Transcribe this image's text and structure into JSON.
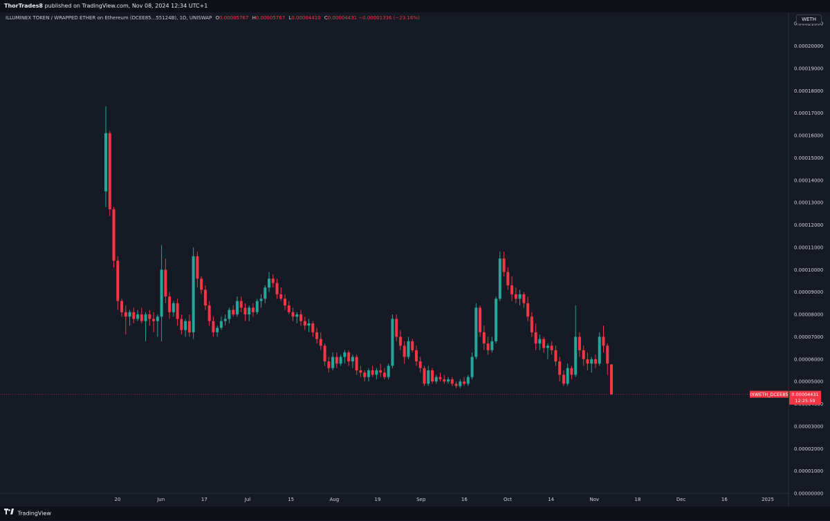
{
  "publish": {
    "author": "ThorTrades8",
    "text": "published on TradingView.com, Nov 08, 2024 12:34 UTC+1"
  },
  "legend": {
    "symbol": "ILLUMINEX TOKEN / WRAPPED ETHER on Ethereum (DCEE85...55124B), 1D, UNISWAP",
    "o_label": "O",
    "o_value": "0.00005767",
    "h_label": "H",
    "h_value": "0.00005767",
    "l_label": "L",
    "l_value": "0.00004410",
    "c_label": "C",
    "c_value": "0.00004431",
    "change": "−0.00001336 (−23.16%)"
  },
  "currency": "WETH",
  "price_label": {
    "ticker": "IXWETH_DCEE85",
    "price": "0.00004431",
    "countdown": "12:25:59"
  },
  "footer": {
    "brand": "TradingView"
  },
  "colors": {
    "up": "#26a69a",
    "down": "#f23645",
    "background": "#161a25",
    "axis_text": "#d1d4dc"
  },
  "chart_data": {
    "type": "candlestick",
    "ylim": [
      0,
      0.000215
    ],
    "ytick_labels": [
      "0.00021000",
      "0.00020000",
      "0.00019000",
      "0.00018000",
      "0.00017000",
      "0.00016000",
      "0.00015000",
      "0.00014000",
      "0.00013000",
      "0.00012000",
      "0.00011000",
      "0.00010000",
      "0.00009000",
      "0.00008000",
      "0.00007000",
      "0.00006000",
      "0.00005000",
      "0.00004000",
      "0.00003000",
      "0.00002000",
      "0.00001000",
      "0.00000000"
    ],
    "xtick_labels": [
      "20",
      "Jun",
      "17",
      "Jul",
      "15",
      "Aug",
      "19",
      "Sep",
      "16",
      "Oct",
      "14",
      "Nov",
      "18",
      "Dec",
      "16",
      "2025"
    ],
    "last_price": 4.431e-05,
    "candles": [
      {
        "o": 0.000135,
        "h": 0.000173,
        "l": 0.000128,
        "c": 0.000161
      },
      {
        "o": 0.000161,
        "h": 0.000162,
        "l": 0.000124,
        "c": 0.000127
      },
      {
        "o": 0.000127,
        "h": 0.000128,
        "l": 0.000101,
        "c": 0.000104
      },
      {
        "o": 0.000104,
        "h": 0.000106,
        "l": 8.2e-05,
        "c": 8.6e-05
      },
      {
        "o": 8.6e-05,
        "h": 8.7e-05,
        "l": 7.9e-05,
        "c": 8.1e-05
      },
      {
        "o": 8.1e-05,
        "h": 8.4e-05,
        "l": 7.1e-05,
        "c": 7.9e-05
      },
      {
        "o": 7.9e-05,
        "h": 8.2e-05,
        "l": 7.5e-05,
        "c": 8.1e-05
      },
      {
        "o": 8.1e-05,
        "h": 8.3e-05,
        "l": 7.6e-05,
        "c": 7.8e-05
      },
      {
        "o": 7.8e-05,
        "h": 8.2e-05,
        "l": 7.7e-05,
        "c": 8e-05
      },
      {
        "o": 8e-05,
        "h": 8.3e-05,
        "l": 7.6e-05,
        "c": 7.7e-05
      },
      {
        "o": 7.7e-05,
        "h": 8.1e-05,
        "l": 6.8e-05,
        "c": 8e-05
      },
      {
        "o": 8e-05,
        "h": 8.2e-05,
        "l": 7.5e-05,
        "c": 7.8e-05
      },
      {
        "o": 7.8e-05,
        "h": 8.1e-05,
        "l": 7.2e-05,
        "c": 7.7e-05
      },
      {
        "o": 7.7e-05,
        "h": 8e-05,
        "l": 7e-05,
        "c": 7.9e-05
      },
      {
        "o": 7.9e-05,
        "h": 0.000111,
        "l": 6.8e-05,
        "c": 0.0001
      },
      {
        "o": 0.0001,
        "h": 0.000105,
        "l": 8.5e-05,
        "c": 8.8e-05
      },
      {
        "o": 8.8e-05,
        "h": 9e-05,
        "l": 7.8e-05,
        "c": 8.1e-05
      },
      {
        "o": 8.1e-05,
        "h": 8.6e-05,
        "l": 7.9e-05,
        "c": 8.5e-05
      },
      {
        "o": 8.5e-05,
        "h": 8.7e-05,
        "l": 7.5e-05,
        "c": 7.8e-05
      },
      {
        "o": 7.8e-05,
        "h": 8e-05,
        "l": 7.1e-05,
        "c": 7.3e-05
      },
      {
        "o": 7.3e-05,
        "h": 7.8e-05,
        "l": 7e-05,
        "c": 7.7e-05
      },
      {
        "o": 7.7e-05,
        "h": 8e-05,
        "l": 7e-05,
        "c": 7.2e-05
      },
      {
        "o": 7.2e-05,
        "h": 0.00011,
        "l": 6.9e-05,
        "c": 0.000106
      },
      {
        "o": 0.000106,
        "h": 0.000108,
        "l": 9.2e-05,
        "c": 9.6e-05
      },
      {
        "o": 9.6e-05,
        "h": 9.7e-05,
        "l": 8.9e-05,
        "c": 9.1e-05
      },
      {
        "o": 9.1e-05,
        "h": 9.3e-05,
        "l": 8.2e-05,
        "c": 8.4e-05
      },
      {
        "o": 8.4e-05,
        "h": 8.6e-05,
        "l": 7.5e-05,
        "c": 7.7e-05
      },
      {
        "o": 7.7e-05,
        "h": 7.9e-05,
        "l": 7e-05,
        "c": 7.2e-05
      },
      {
        "o": 7.2e-05,
        "h": 7.5e-05,
        "l": 7e-05,
        "c": 7.4e-05
      },
      {
        "o": 7.4e-05,
        "h": 7.9e-05,
        "l": 7.3e-05,
        "c": 7.7e-05
      },
      {
        "o": 7.7e-05,
        "h": 8e-05,
        "l": 7.5e-05,
        "c": 7.8e-05
      },
      {
        "o": 7.8e-05,
        "h": 8.3e-05,
        "l": 7.6e-05,
        "c": 8.2e-05
      },
      {
        "o": 8.2e-05,
        "h": 8.4e-05,
        "l": 7.9e-05,
        "c": 8e-05
      },
      {
        "o": 8e-05,
        "h": 8.8e-05,
        "l": 7.9e-05,
        "c": 8.6e-05
      },
      {
        "o": 8.6e-05,
        "h": 8.8e-05,
        "l": 8.1e-05,
        "c": 8.3e-05
      },
      {
        "o": 8.3e-05,
        "h": 8.5e-05,
        "l": 7.7e-05,
        "c": 8e-05
      },
      {
        "o": 8e-05,
        "h": 8.4e-05,
        "l": 7.7e-05,
        "c": 8.3e-05
      },
      {
        "o": 8.3e-05,
        "h": 8.5e-05,
        "l": 7.9e-05,
        "c": 8.1e-05
      },
      {
        "o": 8.1e-05,
        "h": 8.7e-05,
        "l": 8e-05,
        "c": 8.6e-05
      },
      {
        "o": 8.6e-05,
        "h": 8.9e-05,
        "l": 8.3e-05,
        "c": 8.7e-05
      },
      {
        "o": 8.7e-05,
        "h": 9.3e-05,
        "l": 8.5e-05,
        "c": 9.2e-05
      },
      {
        "o": 9.2e-05,
        "h": 9.9e-05,
        "l": 9e-05,
        "c": 9.6e-05
      },
      {
        "o": 9.6e-05,
        "h": 9.8e-05,
        "l": 9.2e-05,
        "c": 9.4e-05
      },
      {
        "o": 9.4e-05,
        "h": 9.6e-05,
        "l": 8.7e-05,
        "c": 8.9e-05
      },
      {
        "o": 8.9e-05,
        "h": 9.2e-05,
        "l": 8.6e-05,
        "c": 8.7e-05
      },
      {
        "o": 8.7e-05,
        "h": 8.9e-05,
        "l": 8.2e-05,
        "c": 8.4e-05
      },
      {
        "o": 8.4e-05,
        "h": 8.6e-05,
        "l": 8e-05,
        "c": 8.1e-05
      },
      {
        "o": 8.1e-05,
        "h": 8.3e-05,
        "l": 7.7e-05,
        "c": 7.9e-05
      },
      {
        "o": 7.9e-05,
        "h": 8.1e-05,
        "l": 7.6e-05,
        "c": 8e-05
      },
      {
        "o": 8e-05,
        "h": 8.2e-05,
        "l": 7.5e-05,
        "c": 7.7e-05
      },
      {
        "o": 7.7e-05,
        "h": 7.9e-05,
        "l": 7.3e-05,
        "c": 7.5e-05
      },
      {
        "o": 7.5e-05,
        "h": 7.8e-05,
        "l": 7.2e-05,
        "c": 7.6e-05
      },
      {
        "o": 7.6e-05,
        "h": 7.7e-05,
        "l": 7e-05,
        "c": 7.2e-05
      },
      {
        "o": 7.2e-05,
        "h": 7.4e-05,
        "l": 6.7e-05,
        "c": 6.9e-05
      },
      {
        "o": 6.9e-05,
        "h": 7.2e-05,
        "l": 6.4e-05,
        "c": 6.6e-05
      },
      {
        "o": 6.6e-05,
        "h": 6.7e-05,
        "l": 5.7e-05,
        "c": 5.9e-05
      },
      {
        "o": 5.9e-05,
        "h": 6.1e-05,
        "l": 5.4e-05,
        "c": 5.6e-05
      },
      {
        "o": 5.6e-05,
        "h": 6.3e-05,
        "l": 5.5e-05,
        "c": 6.1e-05
      },
      {
        "o": 6.1e-05,
        "h": 6.3e-05,
        "l": 5.6e-05,
        "c": 5.8e-05
      },
      {
        "o": 5.8e-05,
        "h": 6.2e-05,
        "l": 5.7e-05,
        "c": 6.1e-05
      },
      {
        "o": 6.1e-05,
        "h": 6.4e-05,
        "l": 5.8e-05,
        "c": 6.3e-05
      },
      {
        "o": 6.3e-05,
        "h": 6.4e-05,
        "l": 5.7e-05,
        "c": 5.9e-05
      },
      {
        "o": 5.9e-05,
        "h": 6.2e-05,
        "l": 5.6e-05,
        "c": 6.1e-05
      },
      {
        "o": 6.1e-05,
        "h": 6.2e-05,
        "l": 5.3e-05,
        "c": 5.5e-05
      },
      {
        "o": 5.5e-05,
        "h": 5.7e-05,
        "l": 5.2e-05,
        "c": 5.4e-05
      },
      {
        "o": 5.4e-05,
        "h": 5.5e-05,
        "l": 5e-05,
        "c": 5.2e-05
      },
      {
        "o": 5.2e-05,
        "h": 5.6e-05,
        "l": 5e-05,
        "c": 5.5e-05
      },
      {
        "o": 5.5e-05,
        "h": 5.7e-05,
        "l": 5.2e-05,
        "c": 5.3e-05
      },
      {
        "o": 5.3e-05,
        "h": 5.6e-05,
        "l": 5.1e-05,
        "c": 5.5e-05
      },
      {
        "o": 5.5e-05,
        "h": 5.8e-05,
        "l": 5.2e-05,
        "c": 5.4e-05
      },
      {
        "o": 5.4e-05,
        "h": 5.6e-05,
        "l": 5.1e-05,
        "c": 5.2e-05
      },
      {
        "o": 5.2e-05,
        "h": 5.8e-05,
        "l": 5.1e-05,
        "c": 5.7e-05
      },
      {
        "o": 5.7e-05,
        "h": 8e-05,
        "l": 5.6e-05,
        "c": 7.8e-05
      },
      {
        "o": 7.8e-05,
        "h": 8e-05,
        "l": 6.8e-05,
        "c": 7e-05
      },
      {
        "o": 7e-05,
        "h": 7.3e-05,
        "l": 6.4e-05,
        "c": 6.6e-05
      },
      {
        "o": 6.6e-05,
        "h": 6.8e-05,
        "l": 5.8e-05,
        "c": 6.1e-05
      },
      {
        "o": 6.1e-05,
        "h": 7e-05,
        "l": 6e-05,
        "c": 6.8e-05
      },
      {
        "o": 6.8e-05,
        "h": 6.9e-05,
        "l": 6.3e-05,
        "c": 6.4e-05
      },
      {
        "o": 6.4e-05,
        "h": 6.6e-05,
        "l": 5.7e-05,
        "c": 5.9e-05
      },
      {
        "o": 5.9e-05,
        "h": 6.1e-05,
        "l": 5.4e-05,
        "c": 5.6e-05
      },
      {
        "o": 5.6e-05,
        "h": 5.7e-05,
        "l": 4.8e-05,
        "c": 4.9e-05
      },
      {
        "o": 4.9e-05,
        "h": 5.7e-05,
        "l": 4.8e-05,
        "c": 5.5e-05
      },
      {
        "o": 5.5e-05,
        "h": 5.6e-05,
        "l": 4.9e-05,
        "c": 5e-05
      },
      {
        "o": 5e-05,
        "h": 5.3e-05,
        "l": 4.9e-05,
        "c": 5.2e-05
      },
      {
        "o": 5.2e-05,
        "h": 5.4e-05,
        "l": 5e-05,
        "c": 5.1e-05
      },
      {
        "o": 5.1e-05,
        "h": 5.3e-05,
        "l": 4.9e-05,
        "c": 5e-05
      },
      {
        "o": 5e-05,
        "h": 5.2e-05,
        "l": 4.9e-05,
        "c": 5.1e-05
      },
      {
        "o": 5.1e-05,
        "h": 5.2e-05,
        "l": 4.8e-05,
        "c": 4.9e-05
      },
      {
        "o": 4.9e-05,
        "h": 5e-05,
        "l": 4.7e-05,
        "c": 4.8e-05
      },
      {
        "o": 4.8e-05,
        "h": 5.1e-05,
        "l": 4.7e-05,
        "c": 5e-05
      },
      {
        "o": 5e-05,
        "h": 5.2e-05,
        "l": 4.8e-05,
        "c": 4.9e-05
      },
      {
        "o": 4.9e-05,
        "h": 5.3e-05,
        "l": 4.8e-05,
        "c": 5.2e-05
      },
      {
        "o": 5.2e-05,
        "h": 6.3e-05,
        "l": 5.1e-05,
        "c": 6.1e-05
      },
      {
        "o": 6.1e-05,
        "h": 8.5e-05,
        "l": 6e-05,
        "c": 8.3e-05
      },
      {
        "o": 8.3e-05,
        "h": 8.4e-05,
        "l": 7e-05,
        "c": 7.2e-05
      },
      {
        "o": 7.2e-05,
        "h": 7.5e-05,
        "l": 6.4e-05,
        "c": 6.7e-05
      },
      {
        "o": 6.7e-05,
        "h": 7e-05,
        "l": 6.2e-05,
        "c": 6.4e-05
      },
      {
        "o": 6.4e-05,
        "h": 7e-05,
        "l": 6.3e-05,
        "c": 6.8e-05
      },
      {
        "o": 6.8e-05,
        "h": 8.8e-05,
        "l": 6.7e-05,
        "c": 8.7e-05
      },
      {
        "o": 8.7e-05,
        "h": 0.000108,
        "l": 8.6e-05,
        "c": 0.000105
      },
      {
        "o": 0.000105,
        "h": 0.000108,
        "l": 9.7e-05,
        "c": 9.9e-05
      },
      {
        "o": 9.9e-05,
        "h": 0.000101,
        "l": 9.1e-05,
        "c": 9.3e-05
      },
      {
        "o": 9.3e-05,
        "h": 9.7e-05,
        "l": 8.6e-05,
        "c": 8.9e-05
      },
      {
        "o": 8.9e-05,
        "h": 9.2e-05,
        "l": 8.5e-05,
        "c": 8.7e-05
      },
      {
        "o": 8.7e-05,
        "h": 9.1e-05,
        "l": 8.4e-05,
        "c": 8.9e-05
      },
      {
        "o": 8.9e-05,
        "h": 9e-05,
        "l": 8.3e-05,
        "c": 8.5e-05
      },
      {
        "o": 8.5e-05,
        "h": 8.8e-05,
        "l": 7.7e-05,
        "c": 7.9e-05
      },
      {
        "o": 7.9e-05,
        "h": 8.1e-05,
        "l": 7e-05,
        "c": 7.2e-05
      },
      {
        "o": 7.2e-05,
        "h": 7.6e-05,
        "l": 6.4e-05,
        "c": 6.7e-05
      },
      {
        "o": 6.7e-05,
        "h": 7.1e-05,
        "l": 6.4e-05,
        "c": 6.9e-05
      },
      {
        "o": 6.9e-05,
        "h": 7e-05,
        "l": 6.3e-05,
        "c": 6.5e-05
      },
      {
        "o": 6.5e-05,
        "h": 6.7e-05,
        "l": 6e-05,
        "c": 6.6e-05
      },
      {
        "o": 6.6e-05,
        "h": 6.8e-05,
        "l": 6.2e-05,
        "c": 6.4e-05
      },
      {
        "o": 6.4e-05,
        "h": 6.6e-05,
        "l": 5.7e-05,
        "c": 5.9e-05
      },
      {
        "o": 5.9e-05,
        "h": 6.1e-05,
        "l": 5e-05,
        "c": 5.3e-05
      },
      {
        "o": 5.3e-05,
        "h": 5.5e-05,
        "l": 4.8e-05,
        "c": 4.9e-05
      },
      {
        "o": 4.9e-05,
        "h": 5.8e-05,
        "l": 4.8e-05,
        "c": 5.6e-05
      },
      {
        "o": 5.6e-05,
        "h": 5.7e-05,
        "l": 5.1e-05,
        "c": 5.3e-05
      },
      {
        "o": 5.3e-05,
        "h": 8.4e-05,
        "l": 5.2e-05,
        "c": 7e-05
      },
      {
        "o": 7e-05,
        "h": 7.2e-05,
        "l": 6.1e-05,
        "c": 6.4e-05
      },
      {
        "o": 6.4e-05,
        "h": 6.6e-05,
        "l": 5.7e-05,
        "c": 6e-05
      },
      {
        "o": 6e-05,
        "h": 6.3e-05,
        "l": 5.5e-05,
        "c": 5.8e-05
      },
      {
        "o": 5.8e-05,
        "h": 6.1e-05,
        "l": 5.4e-05,
        "c": 6e-05
      },
      {
        "o": 6e-05,
        "h": 6.2e-05,
        "l": 5.6e-05,
        "c": 5.8e-05
      },
      {
        "o": 5.8e-05,
        "h": 7.2e-05,
        "l": 5.7e-05,
        "c": 7e-05
      },
      {
        "o": 7e-05,
        "h": 7.5e-05,
        "l": 6.3e-05,
        "c": 6.6e-05
      },
      {
        "o": 6.6e-05,
        "h": 6.7e-05,
        "l": 5.3e-05,
        "c": 5.8e-05
      },
      {
        "o": 5.767e-05,
        "h": 5.767e-05,
        "l": 4.41e-05,
        "c": 4.431e-05
      }
    ]
  }
}
